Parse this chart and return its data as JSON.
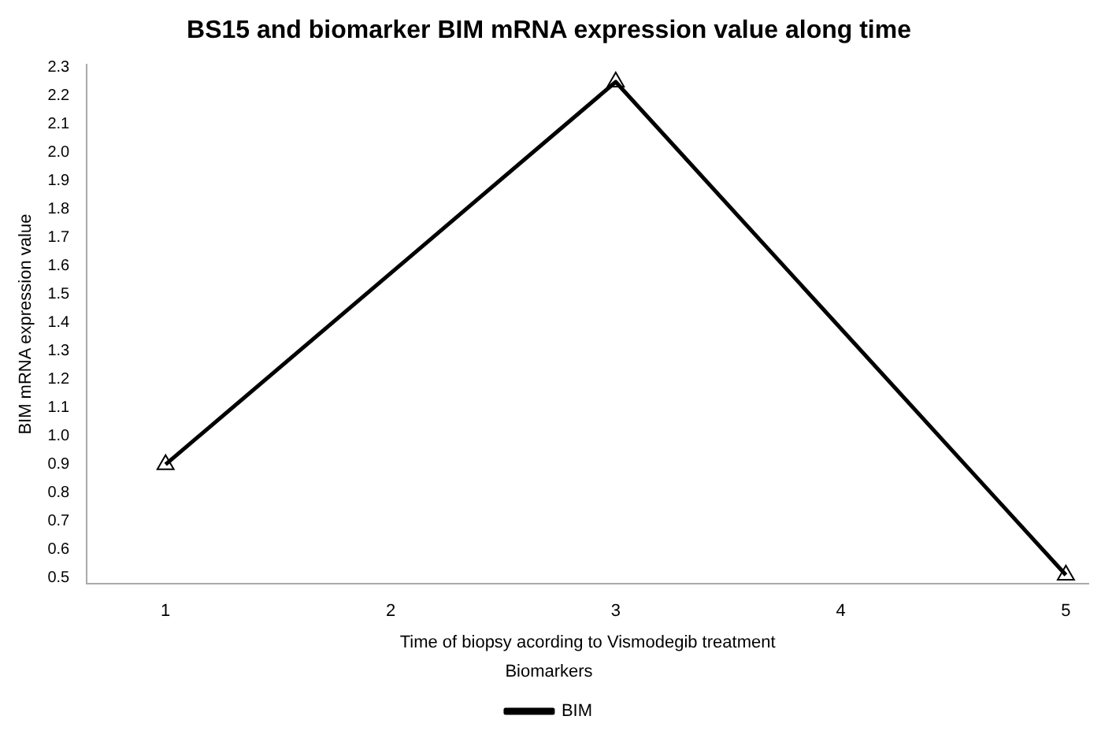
{
  "chart_data": {
    "type": "line",
    "title": "BS15 and biomarker BIM mRNA expression value along time",
    "xlabel": "Time of biopsy acording to Vismodegib treatment",
    "ylabel": "BIM mRNA expression value",
    "legend_title": "Biomarkers",
    "x": [
      1,
      3,
      5
    ],
    "series": [
      {
        "name": "BIM",
        "color": "#000000",
        "values": [
          0.9,
          2.25,
          0.51
        ]
      }
    ],
    "xlim": [
      0.65,
      5.1
    ],
    "xticks": [
      1,
      2,
      3,
      4,
      5
    ],
    "ylim": [
      0.48,
      2.31
    ],
    "yticks": [
      0.5,
      0.6,
      0.7,
      0.8,
      0.9,
      {
        "value": 1,
        "label": "1.0"
      },
      1.1,
      1.2,
      1.3,
      1.4,
      1.5,
      1.6,
      1.7,
      1.8,
      1.9,
      {
        "value": 2,
        "label": "2.0"
      },
      2.1,
      2.2,
      2.3
    ],
    "grid": false,
    "legend": "bottom",
    "marker": "triangle",
    "line_style": "solid"
  }
}
